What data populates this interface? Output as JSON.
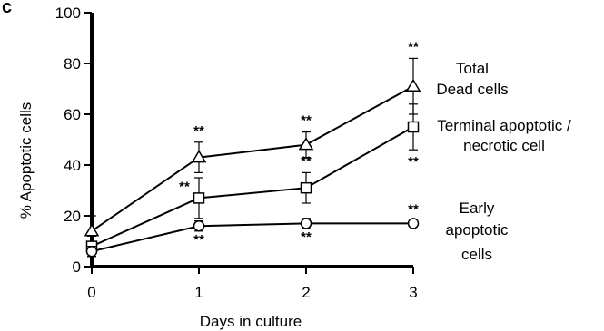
{
  "panel_letter": "c",
  "chart_data": {
    "type": "line",
    "xlabel": "Days in culture",
    "ylabel": "% Apoptotic cells",
    "x": [
      0,
      1,
      2,
      3
    ],
    "x_ticks": [
      "0",
      "1",
      "2",
      "3"
    ],
    "y_ticks": [
      "0",
      "20",
      "40",
      "60",
      "80",
      "100"
    ],
    "xlim": [
      0,
      3
    ],
    "ylim": [
      0,
      100
    ],
    "grid": false,
    "significance_marker": "**",
    "series": [
      {
        "name": "Total Dead cells",
        "label_lines": [
          "Total",
          "Dead cells"
        ],
        "marker": "triangle",
        "values": [
          14,
          43,
          48,
          71
        ],
        "error": [
          6,
          6,
          5,
          11
        ],
        "sig_above": [
          false,
          true,
          true,
          true
        ],
        "sig_below": [
          false,
          false,
          false,
          false
        ]
      },
      {
        "name": "Terminal apoptotic / necrotic cell",
        "label_lines": [
          "Terminal apoptotic /",
          "necrotic cell"
        ],
        "marker": "square",
        "values": [
          8,
          27,
          31,
          55
        ],
        "error": [
          4,
          8,
          6,
          9
        ],
        "sig_above": [
          false,
          false,
          true,
          false
        ],
        "sig_below": [
          false,
          false,
          false,
          true
        ],
        "sig_left": [
          false,
          true,
          false,
          false
        ]
      },
      {
        "name": "Early apoptotic cells",
        "label_lines": [
          "Early",
          "apoptotic",
          "cells"
        ],
        "marker": "circle",
        "values": [
          6,
          16,
          17,
          17
        ],
        "error": [
          2,
          2,
          2,
          1
        ],
        "sig_above": [
          false,
          false,
          false,
          true
        ],
        "sig_below": [
          false,
          true,
          true,
          false
        ]
      }
    ]
  }
}
